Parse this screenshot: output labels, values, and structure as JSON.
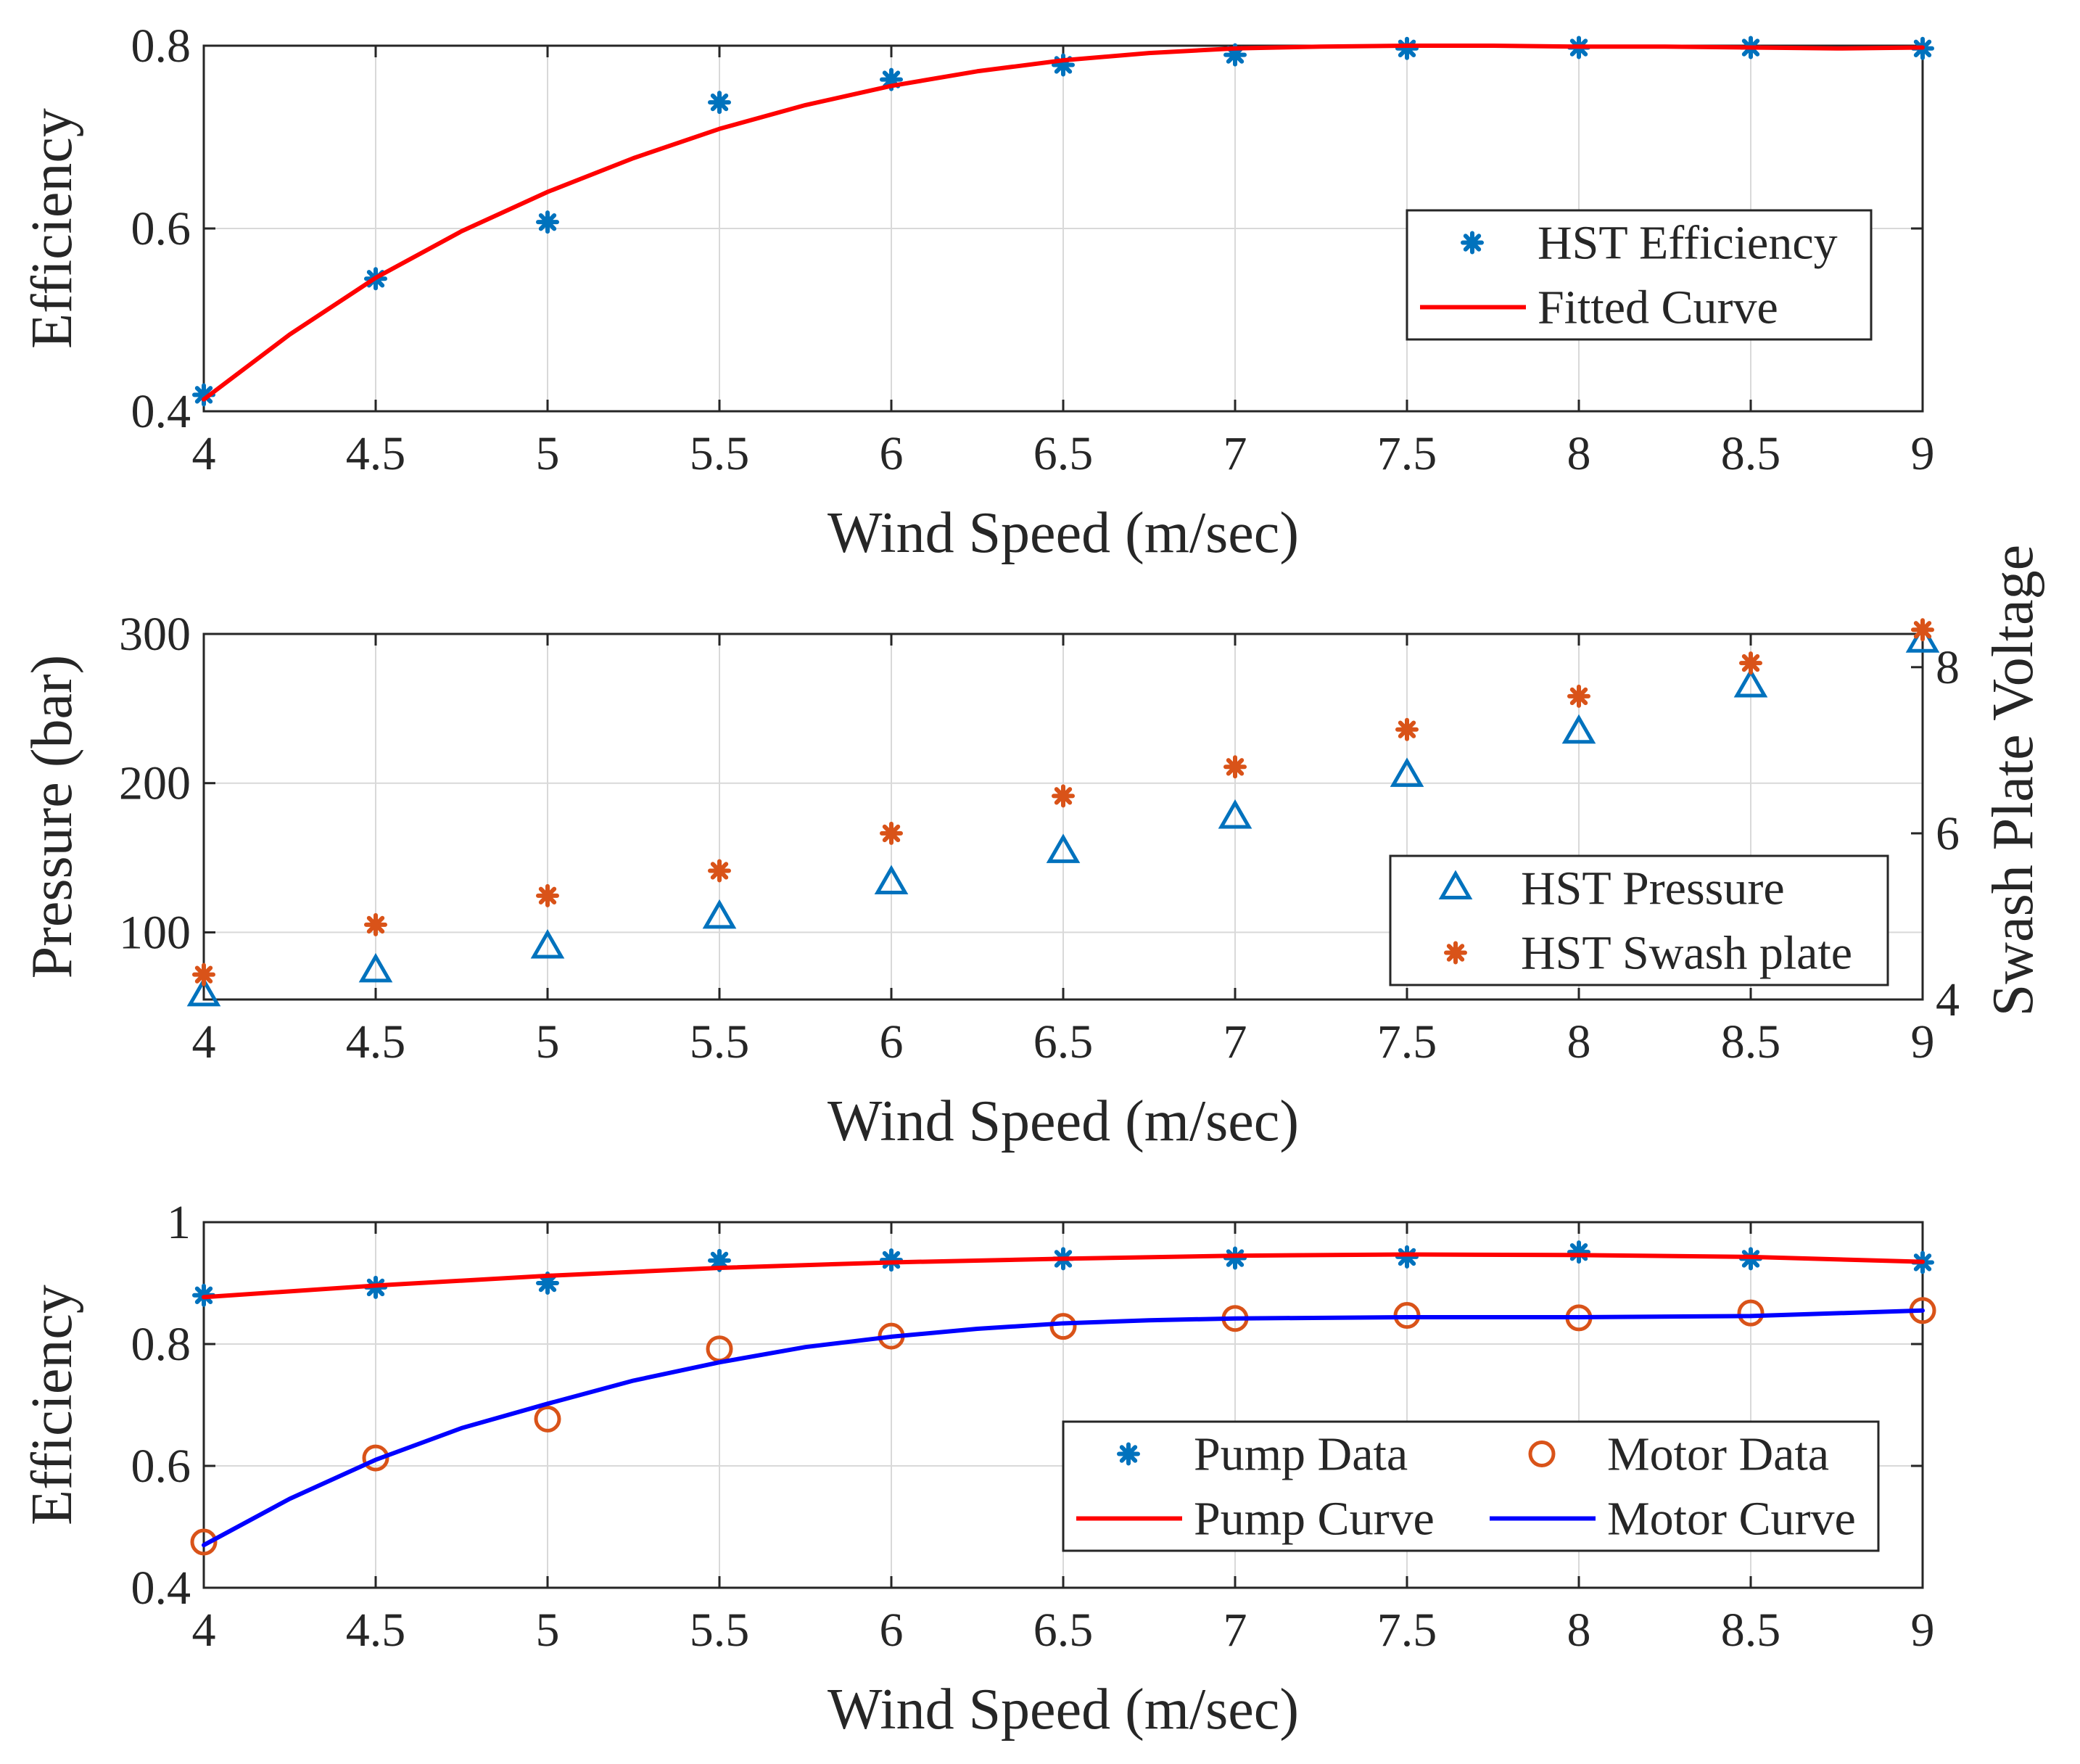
{
  "chart_data": [
    {
      "type": "line",
      "xlabel": "Wind Speed (m/sec)",
      "ylabel": "Efficiency",
      "xlim": [
        4,
        9
      ],
      "ylim": [
        0.4,
        0.8
      ],
      "xticks": [
        "4",
        "4.5",
        "5",
        "5.5",
        "6",
        "6.5",
        "7",
        "7.5",
        "8",
        "8.5",
        "9"
      ],
      "yticks": [
        "0.4",
        "0.6",
        "0.8"
      ],
      "grid": true,
      "legend": "inside right",
      "series": [
        {
          "name": "HST Efficiency",
          "kind": "scatter",
          "marker": "asterisk",
          "color": "#0072BD",
          "x": [
            4,
            4.5,
            5,
            5.5,
            6,
            6.5,
            7,
            7.5,
            8,
            8.5,
            9
          ],
          "y": [
            0.418,
            0.545,
            0.607,
            0.738,
            0.763,
            0.779,
            0.79,
            0.797,
            0.798,
            0.798,
            0.797
          ]
        },
        {
          "name": "Fitted Curve",
          "kind": "line",
          "color": "#FF0000",
          "x": [
            4,
            4.25,
            4.5,
            4.75,
            5,
            5.25,
            5.5,
            5.75,
            6,
            6.25,
            6.5,
            6.75,
            7,
            7.25,
            7.5,
            7.75,
            8,
            8.25,
            8.5,
            8.75,
            9
          ],
          "y": [
            0.413,
            0.484,
            0.546,
            0.597,
            0.64,
            0.677,
            0.709,
            0.735,
            0.756,
            0.772,
            0.784,
            0.792,
            0.797,
            0.799,
            0.8,
            0.8,
            0.799,
            0.799,
            0.798,
            0.797,
            0.798
          ]
        }
      ]
    },
    {
      "type": "scatter",
      "xlabel": "Wind Speed (m/sec)",
      "ylabel": "Pressure (bar)",
      "ylabel_right": "Swash Plate Voltage",
      "xlim": [
        4,
        9
      ],
      "ylim": [
        55,
        300
      ],
      "ylim_right": [
        4,
        8.4
      ],
      "xticks": [
        "4",
        "4.5",
        "5",
        "5.5",
        "6",
        "6.5",
        "7",
        "7.5",
        "8",
        "8.5",
        "9"
      ],
      "yticks": [
        "100",
        "200",
        "300"
      ],
      "yticks_right": [
        "4",
        "6",
        "8"
      ],
      "grid": true,
      "legend": "inside right",
      "series": [
        {
          "name": "HST Pressure",
          "axis": "left",
          "marker": "triangle",
          "color": "#0072BD",
          "x": [
            4,
            4.5,
            5,
            5.5,
            6,
            6.5,
            7,
            7.5,
            8,
            8.5,
            9
          ],
          "y": [
            58,
            74,
            90,
            110,
            133,
            154,
            177,
            205,
            234,
            265,
            295
          ]
        },
        {
          "name": "HST Swash plate",
          "axis": "right",
          "marker": "asterisk",
          "color": "#D95319",
          "x": [
            4,
            4.5,
            5,
            5.5,
            6,
            6.5,
            7,
            7.5,
            8,
            8.5,
            9
          ],
          "y": [
            4.3,
            4.9,
            5.25,
            5.55,
            6.0,
            6.45,
            6.8,
            7.25,
            7.65,
            8.05,
            8.45
          ]
        }
      ]
    },
    {
      "type": "line",
      "xlabel": "Wind Speed (m/sec)",
      "ylabel": "Efficiency",
      "xlim": [
        4,
        9
      ],
      "ylim": [
        0.4,
        1
      ],
      "xticks": [
        "4",
        "4.5",
        "5",
        "5.5",
        "6",
        "6.5",
        "7",
        "7.5",
        "8",
        "8.5",
        "9"
      ],
      "yticks": [
        "0.4",
        "0.6",
        "0.8",
        "1"
      ],
      "grid": true,
      "legend": "inside right",
      "series": [
        {
          "name": "Pump Data",
          "kind": "scatter",
          "marker": "asterisk",
          "color": "#0072BD",
          "x": [
            4,
            4.5,
            5,
            5.5,
            6,
            6.5,
            7,
            7.5,
            8,
            8.5,
            9
          ],
          "y": [
            0.88,
            0.893,
            0.9,
            0.937,
            0.938,
            0.94,
            0.941,
            0.943,
            0.951,
            0.94,
            0.934
          ]
        },
        {
          "name": "Motor Data",
          "kind": "scatter",
          "marker": "circle",
          "color": "#D95319",
          "x": [
            4,
            4.5,
            5,
            5.5,
            6,
            6.5,
            7,
            7.5,
            8,
            8.5,
            9
          ],
          "y": [
            0.475,
            0.613,
            0.677,
            0.792,
            0.813,
            0.829,
            0.842,
            0.847,
            0.843,
            0.851,
            0.855
          ]
        },
        {
          "name": "Pump Curve",
          "kind": "line",
          "color": "#FF0000",
          "x": [
            4,
            4.5,
            5,
            5.5,
            6,
            6.5,
            7,
            7.5,
            8,
            8.5,
            9
          ],
          "y": [
            0.877,
            0.896,
            0.912,
            0.925,
            0.934,
            0.94,
            0.945,
            0.947,
            0.946,
            0.943,
            0.935
          ]
        },
        {
          "name": "Motor Curve",
          "kind": "line",
          "color": "#0000FF",
          "x": [
            4,
            4.25,
            4.5,
            4.75,
            5,
            5.25,
            5.5,
            5.75,
            6,
            6.25,
            6.5,
            6.75,
            7,
            7.5,
            8,
            8.5,
            9
          ],
          "y": [
            0.47,
            0.546,
            0.61,
            0.662,
            0.702,
            0.74,
            0.77,
            0.795,
            0.812,
            0.825,
            0.834,
            0.839,
            0.842,
            0.844,
            0.844,
            0.846,
            0.855
          ]
        }
      ]
    }
  ]
}
